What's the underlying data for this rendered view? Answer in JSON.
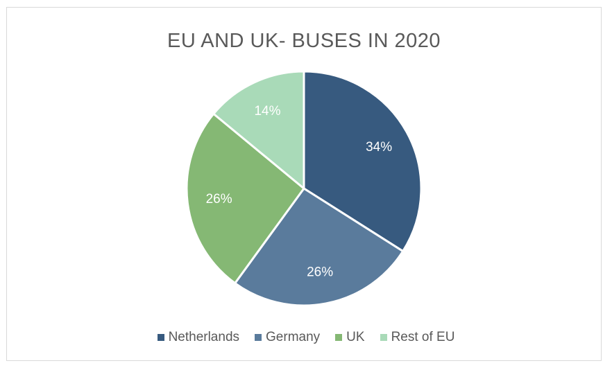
{
  "chart_data": {
    "type": "pie",
    "title": "EU AND UK- BUSES IN 2020",
    "categories": [
      "Netherlands",
      "Germany",
      "UK",
      "Rest of EU"
    ],
    "values": [
      34,
      26,
      26,
      14
    ],
    "labels": [
      "34%",
      "26%",
      "26%",
      "14%"
    ],
    "colors": [
      "#375a7f",
      "#5a7b9c",
      "#85b874",
      "#a9dab8"
    ],
    "legend_position": "bottom"
  }
}
